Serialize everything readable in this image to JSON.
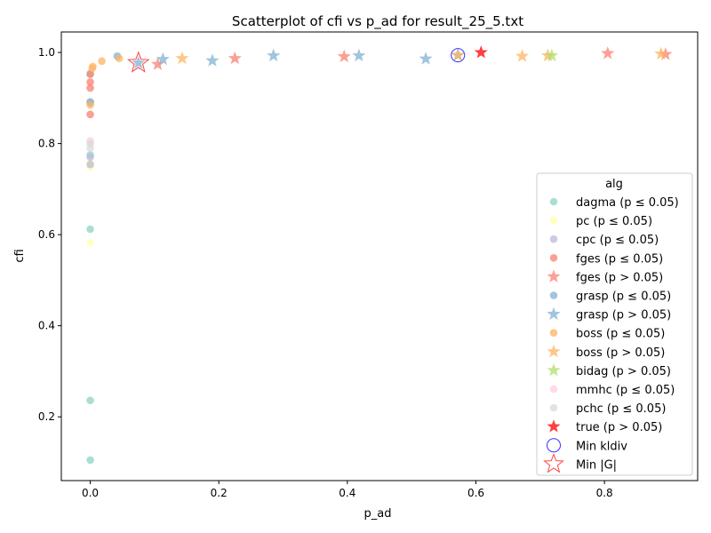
{
  "chart_data": {
    "type": "scatter",
    "title": "Scatterplot of cfi vs p_ad for result_25_5.txt",
    "xlabel": "p_ad",
    "ylabel": "cfi",
    "xlim": [
      -0.045,
      0.945
    ],
    "ylim": [
      0.06,
      1.045
    ],
    "xticks": [
      0.0,
      0.2,
      0.4,
      0.6,
      0.8
    ],
    "xtick_labels": [
      "0.0",
      "0.2",
      "0.4",
      "0.6",
      "0.8"
    ],
    "yticks": [
      0.2,
      0.4,
      0.6,
      0.8,
      1.0
    ],
    "ytick_labels": [
      "0.2",
      "0.4",
      "0.6",
      "0.8",
      "1.0"
    ],
    "grid": false,
    "legend": {
      "title": "alg",
      "placement": "lower-right"
    },
    "series": [
      {
        "name": "dagma (p ≤ 0.05)",
        "marker": "circle",
        "color": "#8dd3c7",
        "points": [
          [
            0.0,
            0.105
          ],
          [
            0.0,
            0.236
          ],
          [
            0.0,
            0.612
          ],
          [
            0.0,
            0.775
          ],
          [
            0.0,
            0.954
          ]
        ]
      },
      {
        "name": "pc (p ≤ 0.05)",
        "marker": "circle",
        "color": "#ffffb3",
        "points": [
          [
            0.0,
            0.582
          ],
          [
            0.0,
            0.748
          ],
          [
            0.0,
            0.757
          ]
        ]
      },
      {
        "name": "cpc (p ≤ 0.05)",
        "marker": "circle",
        "color": "#bebada",
        "points": [
          [
            0.0,
            0.754
          ],
          [
            0.0,
            0.77
          ],
          [
            0.0,
            0.892
          ]
        ]
      },
      {
        "name": "fges (p ≤ 0.05)",
        "marker": "circle",
        "color": "#fb8072",
        "points": [
          [
            0.0,
            0.864
          ],
          [
            0.0,
            0.922
          ],
          [
            0.0,
            0.935
          ],
          [
            0.0,
            0.952
          ]
        ]
      },
      {
        "name": "fges (p > 0.05)",
        "marker": "star",
        "color": "#fb8072",
        "points": [
          [
            0.105,
            0.974
          ],
          [
            0.225,
            0.987
          ],
          [
            0.395,
            0.991
          ],
          [
            0.805,
            0.998
          ],
          [
            0.895,
            0.996
          ]
        ]
      },
      {
        "name": "grasp (p ≤ 0.05)",
        "marker": "circle",
        "color": "#80b1d3",
        "points": [
          [
            0.0,
            0.89
          ],
          [
            0.042,
            0.992
          ]
        ]
      },
      {
        "name": "grasp (p > 0.05)",
        "marker": "star",
        "color": "#80b1d3",
        "points": [
          [
            0.075,
            0.977
          ],
          [
            0.113,
            0.985
          ],
          [
            0.19,
            0.982
          ],
          [
            0.285,
            0.993
          ],
          [
            0.418,
            0.993
          ],
          [
            0.522,
            0.986
          ],
          [
            0.572,
            0.994
          ]
        ]
      },
      {
        "name": "boss (p ≤ 0.05)",
        "marker": "circle",
        "color": "#fdb462",
        "points": [
          [
            0.0,
            0.885
          ],
          [
            0.003,
            0.965
          ],
          [
            0.004,
            0.969
          ],
          [
            0.018,
            0.981
          ],
          [
            0.045,
            0.987
          ]
        ]
      },
      {
        "name": "boss (p > 0.05)",
        "marker": "star",
        "color": "#fdb462",
        "points": [
          [
            0.143,
            0.987
          ],
          [
            0.572,
            0.994
          ],
          [
            0.672,
            0.992
          ],
          [
            0.712,
            0.993
          ],
          [
            0.888,
            0.997
          ]
        ]
      },
      {
        "name": "bidag (p > 0.05)",
        "marker": "star",
        "color": "#b3de69",
        "points": [
          [
            0.718,
            0.993
          ]
        ]
      },
      {
        "name": "mmhc (p ≤ 0.05)",
        "marker": "circle",
        "color": "#fccde5",
        "points": [
          [
            0.0,
            0.806
          ]
        ]
      },
      {
        "name": "pchc (p ≤ 0.05)",
        "marker": "circle",
        "color": "#d9d9d9",
        "points": [
          [
            0.0,
            0.79
          ],
          [
            0.0,
            0.8
          ]
        ]
      },
      {
        "name": "true (p > 0.05)",
        "marker": "star",
        "color": "#ff0000",
        "points": [
          [
            0.608,
            1.0
          ]
        ]
      },
      {
        "name": "Min kldiv",
        "marker": "ring",
        "color": "#3333ff",
        "points": [
          [
            0.572,
            0.994
          ]
        ]
      },
      {
        "name": "Min |G|",
        "marker": "bigstar",
        "color": "#ff4444",
        "points": [
          [
            0.075,
            0.977
          ]
        ]
      }
    ]
  }
}
